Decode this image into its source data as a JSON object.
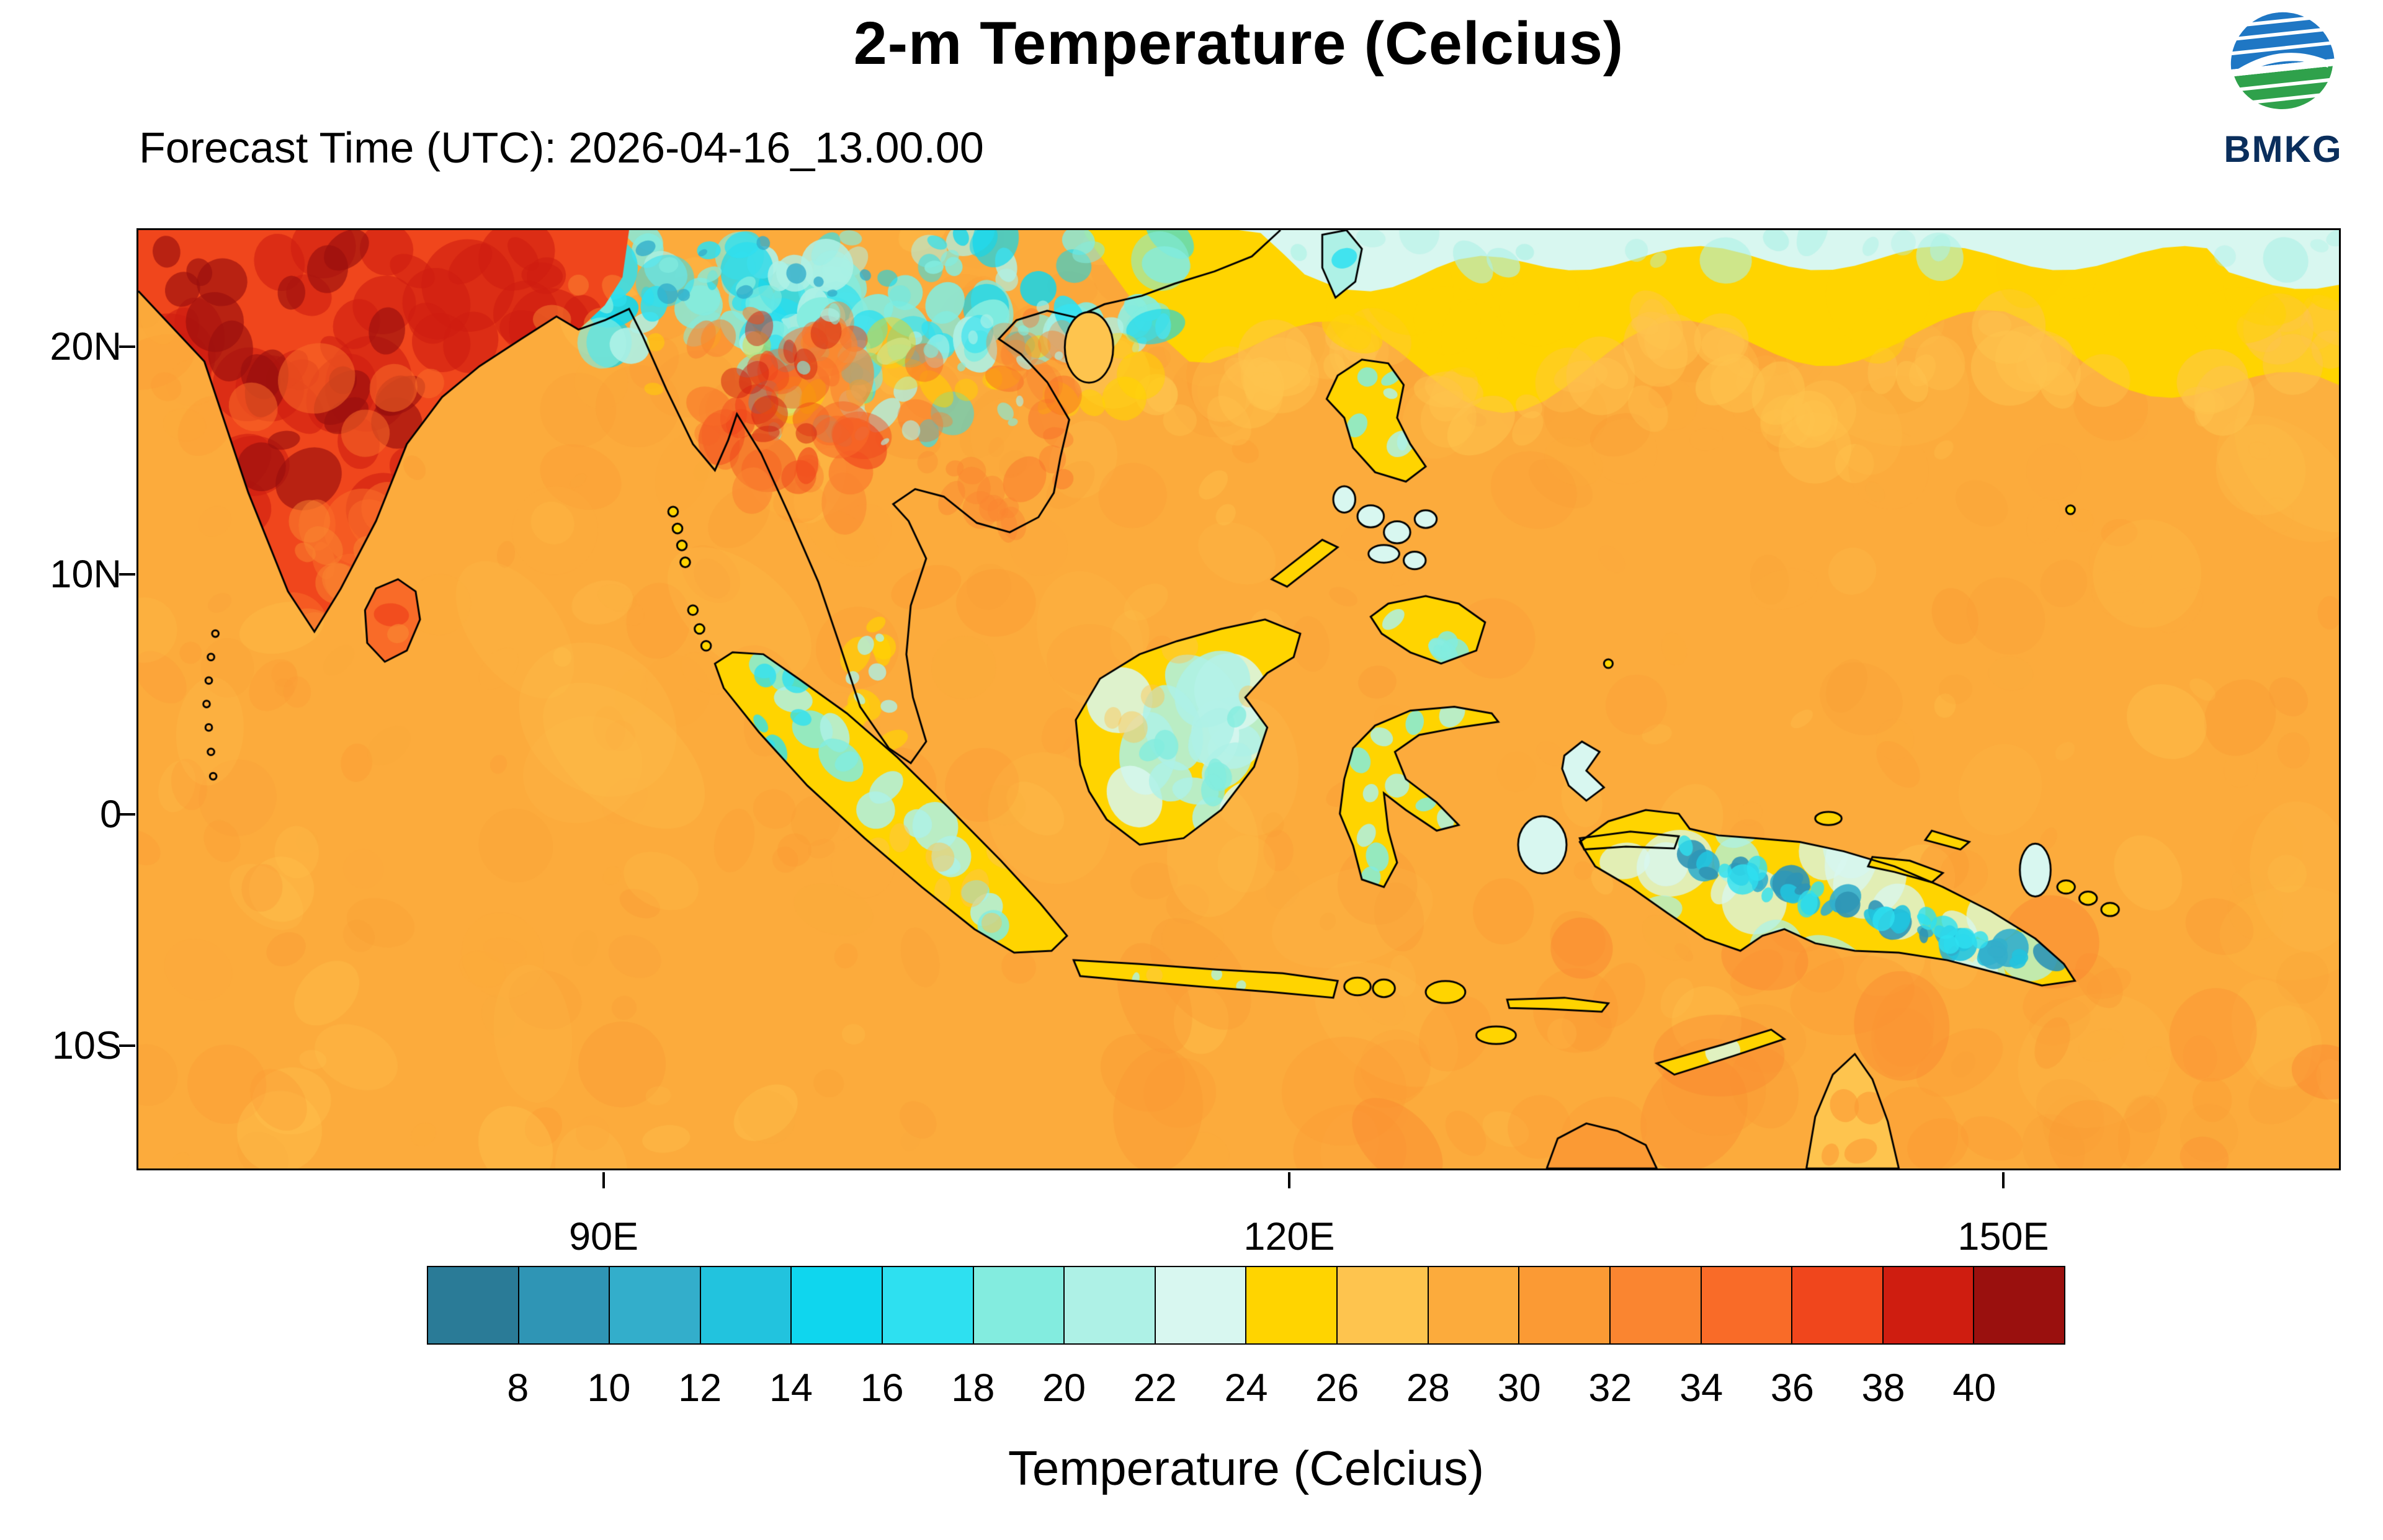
{
  "header": {
    "title": "2-m Temperature (Celcius)",
    "forecast_time": "Forecast Time (UTC): 2026-04-16_13.00.00",
    "logo_text": "BMKG"
  },
  "map": {
    "y_axis_labels": [
      "20N",
      "10N",
      "0",
      "10S"
    ],
    "x_axis_labels": [
      "90E",
      "120E",
      "150E"
    ]
  },
  "legend": {
    "title": "Temperature (Celcius)",
    "tick_labels": [
      "8",
      "10",
      "12",
      "14",
      "16",
      "18",
      "20",
      "22",
      "24",
      "26",
      "28",
      "30",
      "32",
      "34",
      "36",
      "38",
      "40"
    ],
    "colors": [
      "#2a7b97",
      "#2f95b5",
      "#33aecb",
      "#22c3de",
      "#0fd6ee",
      "#2ee0f0",
      "#83ecdf",
      "#aef1e6",
      "#d8f7f0",
      "#ffd400",
      "#fec44e",
      "#fcab3c",
      "#fb9a34",
      "#fa8530",
      "#f96b28",
      "#f0461c",
      "#cf1d10",
      "#9a100e"
    ]
  },
  "chart_data": {
    "type": "heatmap",
    "title": "2-m Temperature (Celcius)",
    "subtitle": "Forecast Time (UTC): 2026-04-16_13.00.00",
    "colorbar_label": "Temperature (Celcius)",
    "colorbar_tick_values": [
      8,
      10,
      12,
      14,
      16,
      18,
      20,
      22,
      24,
      26,
      28,
      30,
      32,
      34,
      36,
      38,
      40
    ],
    "colorbar_colors": [
      "#2a7b97",
      "#2f95b5",
      "#33aecb",
      "#22c3de",
      "#0fd6ee",
      "#2ee0f0",
      "#83ecdf",
      "#aef1e6",
      "#d8f7f0",
      "#ffd400",
      "#fec44e",
      "#fcab3c",
      "#fb9a34",
      "#fa8530",
      "#f96b28",
      "#f0461c",
      "#cf1d10",
      "#9a100e"
    ],
    "x_tick_labels": [
      "90E",
      "120E",
      "150E"
    ],
    "y_tick_labels": [
      "20N",
      "10N",
      "0",
      "10S"
    ],
    "units": "Celcius",
    "readings": [
      {
        "region": "Indian subcontinent",
        "temp_c": "36-40+"
      },
      {
        "region": "Himalaya / Indochina highlands",
        "temp_c": "14-24"
      },
      {
        "region": "Southern China along north edge of domain",
        "temp_c": "22-26"
      },
      {
        "region": "Open ocean across most of domain",
        "temp_c": "28-30"
      },
      {
        "region": "Interior Sumatra / Borneo / Sulawesi / Philippines",
        "temp_c": "18-26"
      },
      {
        "region": "New Guinea central highlands",
        "temp_c": "8-16"
      },
      {
        "region": "Northern Australia at bottom edge",
        "temp_c": "30-34"
      }
    ]
  }
}
